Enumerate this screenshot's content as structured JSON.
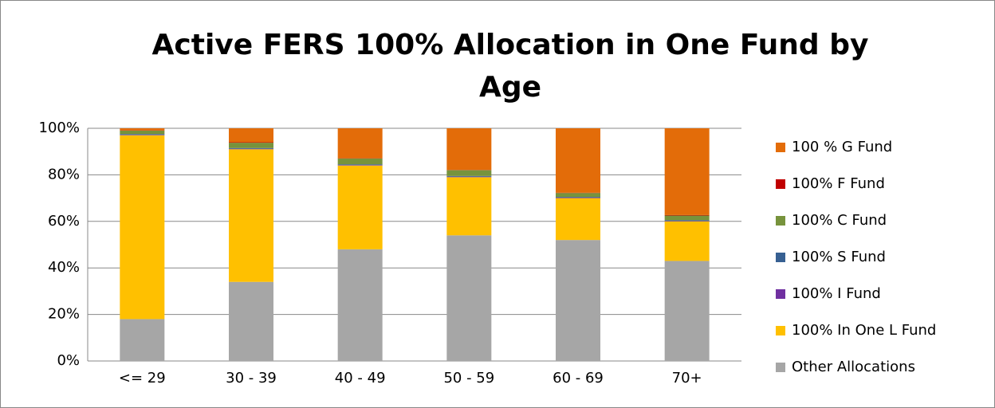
{
  "chart_data": {
    "type": "stacked_bar",
    "title": "Active FERS 100% Allocation in One Fund by Age",
    "categories": [
      "<= 29",
      "30 - 39",
      "40 - 49",
      "50 - 59",
      "60 - 69",
      "70+"
    ],
    "series": [
      {
        "name": "Other Allocations",
        "color": "#a6a6a6",
        "values": [
          18,
          34,
          48,
          54,
          52,
          43
        ]
      },
      {
        "name": "100% In One L Fund",
        "color": "#ffc000",
        "values": [
          79,
          57,
          36,
          25,
          18,
          17
        ]
      },
      {
        "name": "100% I Fund",
        "color": "#7030a0",
        "values": [
          0.2,
          0.2,
          0.2,
          0.2,
          0.2,
          0.2
        ]
      },
      {
        "name": "100% S Fund",
        "color": "#376092",
        "values": [
          0.3,
          0.3,
          0.3,
          0.3,
          0.3,
          0.3
        ]
      },
      {
        "name": "100% C Fund",
        "color": "#77933c",
        "values": [
          1.5,
          2.3,
          2.5,
          2.5,
          1.7,
          2
        ]
      },
      {
        "name": "100% F Fund",
        "color": "#c00000",
        "values": [
          0.1,
          0.2,
          0.1,
          0.1,
          0.1,
          0.2
        ]
      },
      {
        "name": "100 % G Fund",
        "color": "#e36c09",
        "values": [
          0.9,
          6,
          12.9,
          17.9,
          27.7,
          37.3
        ]
      }
    ],
    "ylim": [
      0,
      100
    ],
    "yticks": [
      {
        "value": 0,
        "label": "0%"
      },
      {
        "value": 20,
        "label": "20%"
      },
      {
        "value": 40,
        "label": "40%"
      },
      {
        "value": 60,
        "label": "60%"
      },
      {
        "value": 80,
        "label": "80%"
      },
      {
        "value": 100,
        "label": "100%"
      }
    ],
    "grid": true,
    "legend": "right"
  }
}
